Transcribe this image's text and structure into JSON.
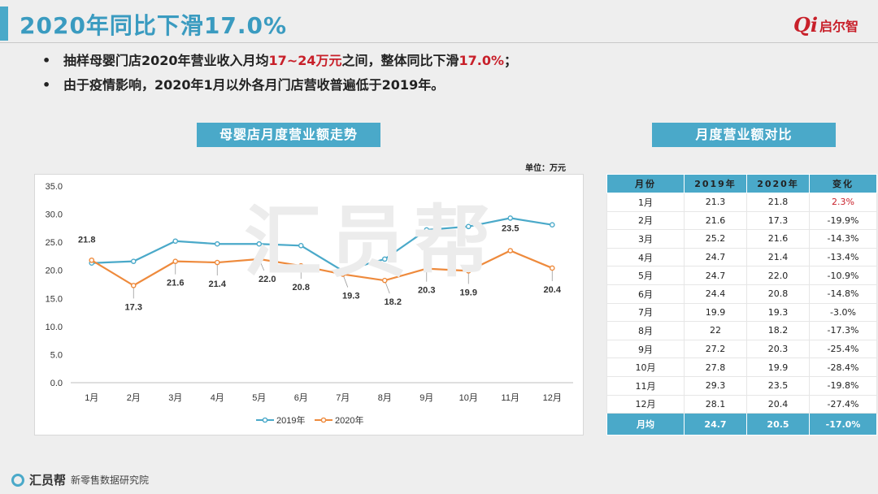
{
  "header": {
    "title": "2020年同比下滑17.0%",
    "logo_mark": "Qi",
    "logo_text": "启尔智"
  },
  "bullets": [
    {
      "pre": "抽样母婴门店2020年营业收入月均",
      "hl": "17~24万元",
      "mid": "之间，整体同比下滑",
      "hl2": "17.0%",
      "post": "；"
    },
    {
      "pre": "由于疫情影响，2020年1月以外各月门店营收普遍低于2019年。"
    }
  ],
  "chart_section_title": "母婴店月度营业额走势",
  "table_section_title": "月度营业额对比",
  "unit_label": "单位：万元",
  "watermark": "汇员帮",
  "chart_data": {
    "type": "line",
    "categories": [
      "1月",
      "2月",
      "3月",
      "4月",
      "5月",
      "6月",
      "7月",
      "8月",
      "9月",
      "10月",
      "11月",
      "12月"
    ],
    "series": [
      {
        "name": "2019年",
        "color": "#4aa9c9",
        "values": [
          21.3,
          21.6,
          25.2,
          24.7,
          24.7,
          24.4,
          19.9,
          22.0,
          27.2,
          27.8,
          29.3,
          28.1
        ]
      },
      {
        "name": "2020年",
        "color": "#ee8a3c",
        "values": [
          21.8,
          17.3,
          21.6,
          21.4,
          22.0,
          20.8,
          19.3,
          18.2,
          20.3,
          19.9,
          23.5,
          20.4
        ]
      }
    ],
    "data_labels": [
      "21.8",
      "17.3",
      "21.6",
      "21.4",
      "22.0",
      "20.8",
      "19.3",
      "18.2",
      "20.3",
      "19.9",
      "23.5",
      "20.4"
    ],
    "yticks": [
      "0.0",
      "5.0",
      "10.0",
      "15.0",
      "20.0",
      "25.0",
      "30.0",
      "35.0"
    ],
    "ylim": [
      0,
      35
    ],
    "grid": false,
    "legend_position": "bottom"
  },
  "table": {
    "headers": [
      "月份",
      "2019年",
      "2020年",
      "变化"
    ],
    "rows": [
      [
        "1月",
        "21.3",
        "21.8",
        "2.3%"
      ],
      [
        "2月",
        "21.6",
        "17.3",
        "-19.9%"
      ],
      [
        "3月",
        "25.2",
        "21.6",
        "-14.3%"
      ],
      [
        "4月",
        "24.7",
        "21.4",
        "-13.4%"
      ],
      [
        "5月",
        "24.7",
        "22.0",
        "-10.9%"
      ],
      [
        "6月",
        "24.4",
        "20.8",
        "-14.8%"
      ],
      [
        "7月",
        "19.9",
        "19.3",
        "-3.0%"
      ],
      [
        "8月",
        "22",
        "18.2",
        "-17.3%"
      ],
      [
        "9月",
        "27.2",
        "20.3",
        "-25.4%"
      ],
      [
        "10月",
        "27.8",
        "19.9",
        "-28.4%"
      ],
      [
        "11月",
        "29.3",
        "23.5",
        "-19.8%"
      ],
      [
        "12月",
        "28.1",
        "20.4",
        "-27.4%"
      ]
    ],
    "avg": [
      "月均",
      "24.7",
      "20.5",
      "-17.0%"
    ],
    "positive_color": "#c8202a"
  },
  "footer": {
    "brand": "汇员帮",
    "text": "新零售数据研究院"
  }
}
